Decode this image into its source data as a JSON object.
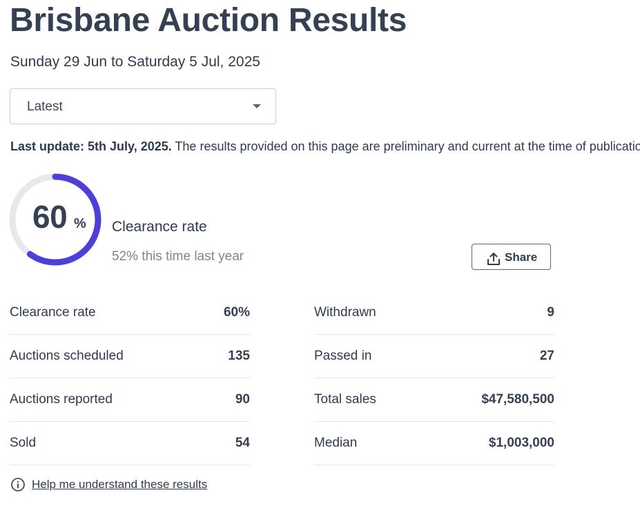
{
  "header": {
    "title": "Brisbane Auction Results",
    "date_range": "Sunday 29 Jun to Saturday 5 Jul, 2025"
  },
  "period_select": {
    "selected": "Latest",
    "icon": "caret-down-icon"
  },
  "update": {
    "bold": "Last update: 5th July, 2025.",
    "text": " The results provided on this page are preliminary and current at the time of publication."
  },
  "summary": {
    "clearance_value": "60",
    "clearance_unit": "%",
    "clearance_fraction": 0.6,
    "clearance_label": "Clearance rate",
    "last_year": "52% this time last year",
    "accent_color": "#4f3fd8",
    "track_color": "#e6e8ec"
  },
  "share": {
    "label": "Share",
    "icon": "upload-icon"
  },
  "stats_left": [
    {
      "label": "Clearance rate",
      "value": "60%"
    },
    {
      "label": "Auctions scheduled",
      "value": "135"
    },
    {
      "label": "Auctions reported",
      "value": "90"
    },
    {
      "label": "Sold",
      "value": "54"
    }
  ],
  "stats_right": [
    {
      "label": "Withdrawn",
      "value": "9"
    },
    {
      "label": "Passed in",
      "value": "27"
    },
    {
      "label": "Total sales",
      "value": "$47,580,500"
    },
    {
      "label": "Median",
      "value": "$1,003,000"
    }
  ],
  "help": {
    "label": "Help me understand these results",
    "icon": "info-icon"
  }
}
